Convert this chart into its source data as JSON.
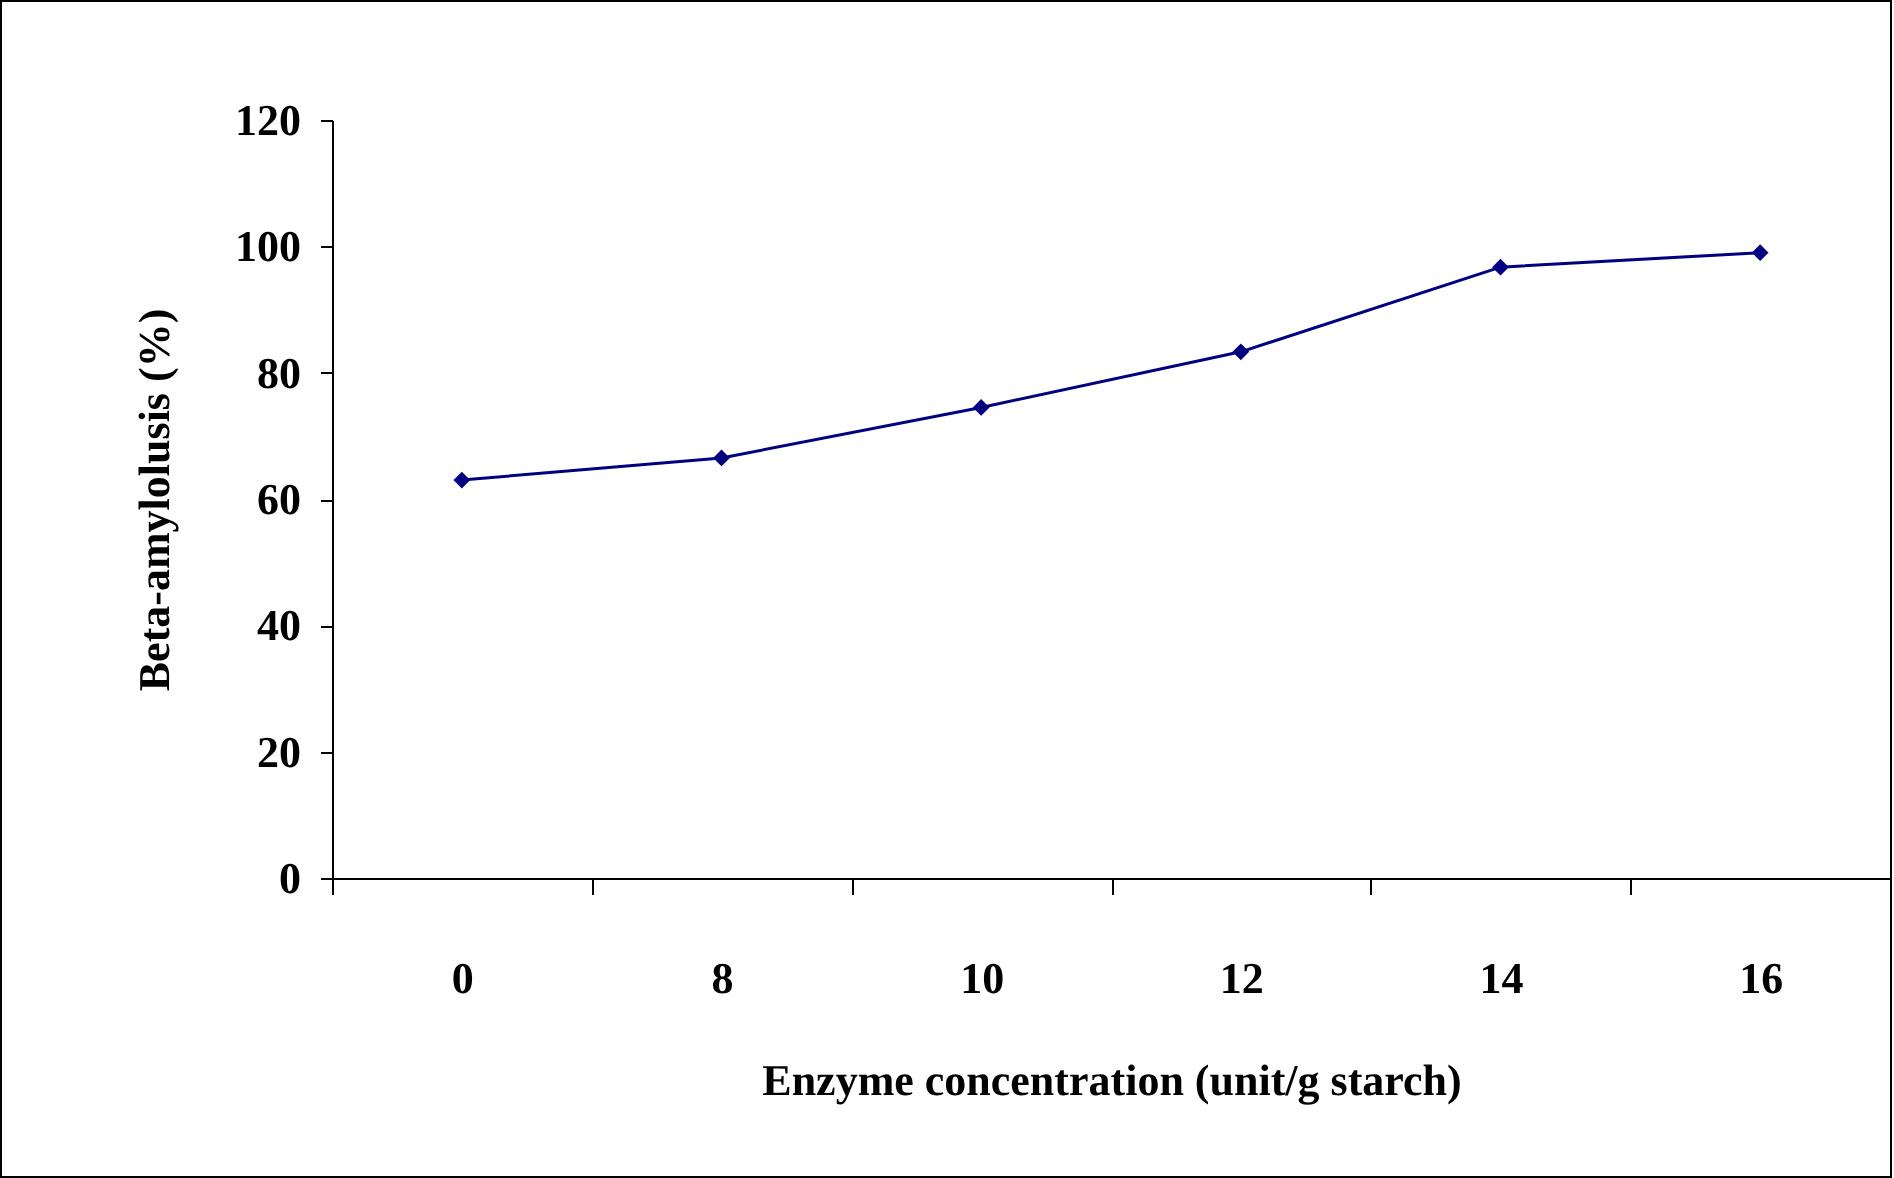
{
  "chart_data": {
    "type": "line",
    "xlabel": "Enzyme concentration (unit/g starch)",
    "ylabel": "Beta-amylolusis (%)",
    "categories": [
      "0",
      "8",
      "10",
      "12",
      "14",
      "16"
    ],
    "series": [
      {
        "color": "#000080",
        "values": [
          63,
          66.5,
          74.5,
          83.3,
          96.7,
          99
        ]
      }
    ],
    "ylim": [
      0,
      120
    ],
    "yticks": [
      0,
      20,
      40,
      60,
      80,
      100,
      120
    ],
    "grid": false,
    "legend": false,
    "marker": "diamond",
    "line_style": "solid"
  }
}
